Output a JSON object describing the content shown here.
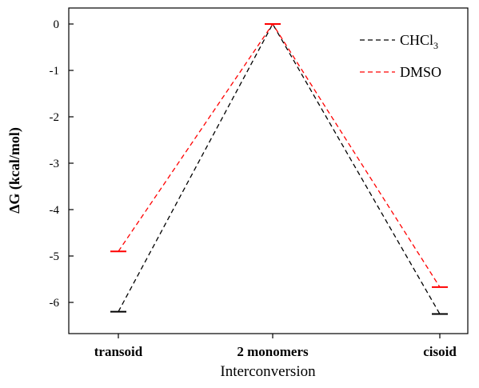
{
  "chart_data": {
    "type": "line",
    "categories": [
      "transoid",
      "2 monomers",
      "cisoid"
    ],
    "xlabel": "Interconversion",
    "ylabel": "ΔG (kcal/mol)",
    "ylim": [
      -6.5,
      0.25
    ],
    "yticks": [
      "0",
      "-1",
      "-2",
      "-3",
      "-4",
      "-5",
      "-6"
    ],
    "grid": false,
    "legend": "top-right",
    "series": [
      {
        "name": "CHCl",
        "name_sub": "3",
        "color": "#000000",
        "values": [
          -6.2,
          0.0,
          -6.25
        ]
      },
      {
        "name": "DMSO",
        "color": "#ff0000",
        "values": [
          -4.9,
          0.0,
          -5.67
        ]
      }
    ]
  }
}
